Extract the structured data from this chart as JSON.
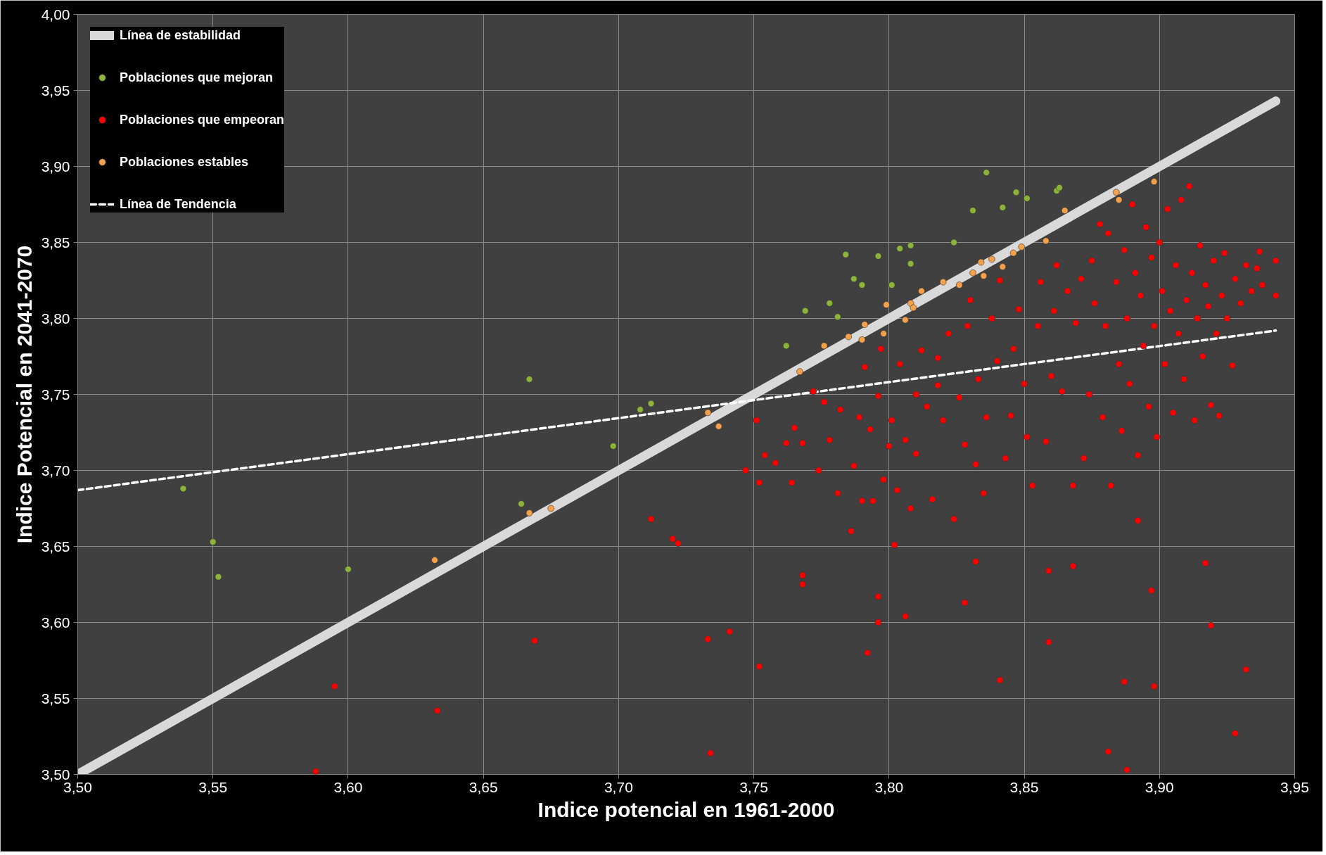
{
  "chart_data": {
    "type": "scatter",
    "xlabel": "Indice potencial en 1961-2000",
    "ylabel": "Indice Potencial en 2041-2070",
    "xlim": [
      3.5,
      3.95
    ],
    "ylim": [
      3.5,
      4.0
    ],
    "xticks": [
      {
        "value": 3.5,
        "label": "3,50"
      },
      {
        "value": 3.55,
        "label": "3,55"
      },
      {
        "value": 3.6,
        "label": "3,60"
      },
      {
        "value": 3.65,
        "label": "3,65"
      },
      {
        "value": 3.7,
        "label": "3,70"
      },
      {
        "value": 3.75,
        "label": "3,75"
      },
      {
        "value": 3.8,
        "label": "3,80"
      },
      {
        "value": 3.85,
        "label": "3,85"
      },
      {
        "value": 3.9,
        "label": "3,90"
      },
      {
        "value": 3.95,
        "label": "3,95"
      }
    ],
    "yticks": [
      {
        "value": 3.5,
        "label": "3,50"
      },
      {
        "value": 3.55,
        "label": "3,55"
      },
      {
        "value": 3.6,
        "label": "3,60"
      },
      {
        "value": 3.65,
        "label": "3,65"
      },
      {
        "value": 3.7,
        "label": "3,70"
      },
      {
        "value": 3.75,
        "label": "3,75"
      },
      {
        "value": 3.8,
        "label": "3,80"
      },
      {
        "value": 3.85,
        "label": "3,85"
      },
      {
        "value": 3.9,
        "label": "3,90"
      },
      {
        "value": 3.95,
        "label": "3,95"
      },
      {
        "value": 4.0,
        "label": "4,00"
      }
    ],
    "grid": true,
    "legend": "top left",
    "series": [
      {
        "name": "Línea de estabilidad",
        "type": "line",
        "color": "#d9d9d9",
        "line_style": "solid",
        "marker": "none",
        "x": [
          3.5,
          3.943
        ],
        "values": [
          3.5,
          3.943
        ]
      },
      {
        "name": "Poblaciones que mejoran",
        "marker": "circle",
        "color": "#8db33a",
        "x": [
          3.539,
          3.55,
          3.552,
          3.6,
          3.667,
          3.664,
          3.698,
          3.708,
          3.712,
          3.762,
          3.769,
          3.778,
          3.781,
          3.784,
          3.787,
          3.79,
          3.796,
          3.801,
          3.804,
          3.808,
          3.808,
          3.824,
          3.831,
          3.836,
          3.842,
          3.847,
          3.851,
          3.862,
          3.863
        ],
        "values": [
          3.688,
          3.653,
          3.63,
          3.635,
          3.76,
          3.678,
          3.716,
          3.74,
          3.744,
          3.782,
          3.805,
          3.81,
          3.801,
          3.842,
          3.826,
          3.822,
          3.841,
          3.822,
          3.846,
          3.848,
          3.836,
          3.85,
          3.871,
          3.896,
          3.873,
          3.883,
          3.879,
          3.884,
          3.886
        ]
      },
      {
        "name": "Poblaciones que empeoran",
        "marker": "circle",
        "color": "#ff0000",
        "x": [
          3.588,
          3.595,
          3.633,
          3.669,
          3.712,
          3.72,
          3.722,
          3.733,
          3.734,
          3.741,
          3.752,
          3.768,
          3.768,
          3.792,
          3.796,
          3.806,
          3.802,
          3.796,
          3.828,
          3.832,
          3.841,
          3.859,
          3.859,
          3.868,
          3.881,
          3.888,
          3.887,
          3.892,
          3.897,
          3.898,
          3.917,
          3.919,
          3.928,
          3.932,
          3.943,
          3.943,
          3.937,
          3.747,
          3.752,
          3.751,
          3.754,
          3.758,
          3.762,
          3.765,
          3.764,
          3.768,
          3.772,
          3.774,
          3.776,
          3.778,
          3.781,
          3.782,
          3.786,
          3.787,
          3.789,
          3.79,
          3.791,
          3.793,
          3.794,
          3.796,
          3.797,
          3.798,
          3.8,
          3.801,
          3.803,
          3.804,
          3.806,
          3.808,
          3.81,
          3.81,
          3.812,
          3.814,
          3.816,
          3.818,
          3.818,
          3.82,
          3.822,
          3.824,
          3.826,
          3.828,
          3.829,
          3.83,
          3.832,
          3.833,
          3.835,
          3.836,
          3.838,
          3.84,
          3.841,
          3.843,
          3.845,
          3.846,
          3.848,
          3.85,
          3.851,
          3.853,
          3.855,
          3.856,
          3.858,
          3.86,
          3.861,
          3.862,
          3.864,
          3.866,
          3.868,
          3.869,
          3.871,
          3.872,
          3.874,
          3.875,
          3.876,
          3.878,
          3.879,
          3.88,
          3.881,
          3.882,
          3.884,
          3.885,
          3.886,
          3.887,
          3.888,
          3.889,
          3.89,
          3.891,
          3.892,
          3.893,
          3.894,
          3.895,
          3.896,
          3.897,
          3.898,
          3.899,
          3.9,
          3.901,
          3.902,
          3.903,
          3.904,
          3.905,
          3.906,
          3.907,
          3.908,
          3.909,
          3.91,
          3.911,
          3.912,
          3.913,
          3.914,
          3.915,
          3.916,
          3.917,
          3.918,
          3.919,
          3.92,
          3.921,
          3.922,
          3.923,
          3.924,
          3.925,
          3.927,
          3.928,
          3.93,
          3.932,
          3.934,
          3.936,
          3.938
        ],
        "values": [
          3.502,
          3.558,
          3.542,
          3.588,
          3.668,
          3.655,
          3.652,
          3.589,
          3.514,
          3.594,
          3.571,
          3.631,
          3.625,
          3.58,
          3.6,
          3.604,
          3.651,
          3.617,
          3.613,
          3.64,
          3.562,
          3.587,
          3.634,
          3.637,
          3.515,
          3.503,
          3.561,
          3.667,
          3.621,
          3.558,
          3.639,
          3.598,
          3.527,
          3.569,
          3.815,
          3.838,
          3.844,
          3.7,
          3.692,
          3.733,
          3.71,
          3.705,
          3.718,
          3.728,
          3.692,
          3.718,
          3.752,
          3.7,
          3.745,
          3.72,
          3.685,
          3.74,
          3.66,
          3.703,
          3.735,
          3.68,
          3.768,
          3.727,
          3.68,
          3.749,
          3.78,
          3.694,
          3.716,
          3.733,
          3.687,
          3.77,
          3.72,
          3.675,
          3.711,
          3.75,
          3.779,
          3.742,
          3.681,
          3.756,
          3.774,
          3.733,
          3.79,
          3.668,
          3.748,
          3.717,
          3.795,
          3.812,
          3.704,
          3.76,
          3.685,
          3.735,
          3.8,
          3.772,
          3.825,
          3.708,
          3.736,
          3.78,
          3.806,
          3.757,
          3.722,
          3.69,
          3.795,
          3.824,
          3.719,
          3.762,
          3.805,
          3.835,
          3.752,
          3.818,
          3.69,
          3.797,
          3.826,
          3.708,
          3.75,
          3.838,
          3.81,
          3.862,
          3.735,
          3.795,
          3.856,
          3.69,
          3.824,
          3.77,
          3.726,
          3.845,
          3.8,
          3.757,
          3.875,
          3.83,
          3.71,
          3.815,
          3.782,
          3.86,
          3.742,
          3.84,
          3.795,
          3.722,
          3.85,
          3.818,
          3.77,
          3.872,
          3.805,
          3.738,
          3.835,
          3.79,
          3.878,
          3.76,
          3.812,
          3.887,
          3.83,
          3.733,
          3.8,
          3.848,
          3.775,
          3.822,
          3.808,
          3.743,
          3.838,
          3.79,
          3.736,
          3.815,
          3.843,
          3.8,
          3.769,
          3.826,
          3.81,
          3.835,
          3.818,
          3.833,
          3.822
        ]
      },
      {
        "name": "Poblaciones estables",
        "marker": "circle",
        "color": "#f5a04a",
        "x": [
          3.632,
          3.667,
          3.675,
          3.733,
          3.737,
          3.767,
          3.776,
          3.785,
          3.79,
          3.798,
          3.791,
          3.799,
          3.806,
          3.808,
          3.809,
          3.812,
          3.82,
          3.826,
          3.831,
          3.834,
          3.835,
          3.838,
          3.842,
          3.846,
          3.849,
          3.858,
          3.865,
          3.884,
          3.885,
          3.898
        ],
        "values": [
          3.641,
          3.672,
          3.675,
          3.738,
          3.729,
          3.765,
          3.782,
          3.788,
          3.786,
          3.79,
          3.796,
          3.809,
          3.799,
          3.81,
          3.807,
          3.818,
          3.824,
          3.822,
          3.83,
          3.837,
          3.828,
          3.839,
          3.834,
          3.843,
          3.847,
          3.851,
          3.871,
          3.883,
          3.878,
          3.89
        ]
      },
      {
        "name": "Línea de Tendencia",
        "type": "line",
        "color": "#ffffff",
        "line_style": "dashed",
        "marker": "none",
        "x": [
          3.5,
          3.943
        ],
        "values": [
          3.687,
          3.792
        ]
      }
    ]
  }
}
